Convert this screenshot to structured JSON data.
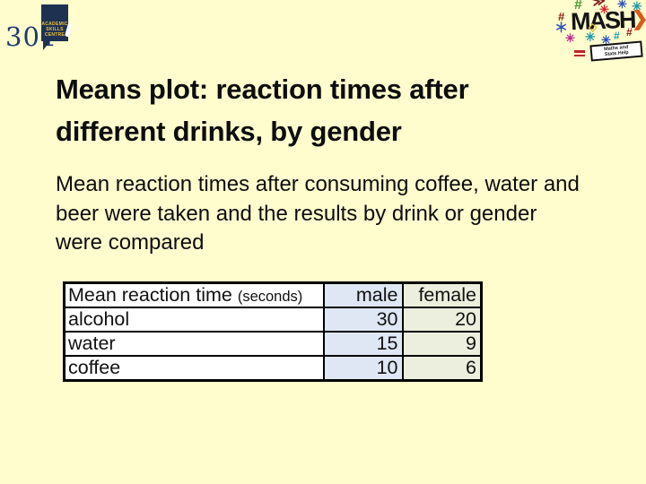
{
  "colors": {
    "background": "#FFFCCD",
    "navy": "#1E3A6E",
    "logo_box": "#1E3151",
    "logo_text": "#EFC23C",
    "male_column": "#DEE7F3",
    "female_column": "#ECEFDD"
  },
  "header": {
    "slide_number": "301",
    "skills_logo_lines": [
      "ACADEMIC",
      "SKILLS",
      "CENTRE"
    ],
    "mash": {
      "word": "MASH",
      "tagline_lines": [
        "Maths and",
        "Stats Help"
      ],
      "symbols": [
        {
          "name": "hash-icon",
          "glyph": "#",
          "color": "#3F9B2F"
        },
        {
          "name": "chevron-arrow-icon",
          "glyph": "≫",
          "color": "#7B1E1E"
        },
        {
          "name": "asterisk-icon",
          "glyph": "✳",
          "color": "#D1242A"
        },
        {
          "name": "asterisk-icon",
          "glyph": "✳",
          "color": "#2B50BE"
        },
        {
          "name": "asterisk-icon",
          "glyph": "✳",
          "color": "#1B9AA8"
        },
        {
          "name": "hash-icon",
          "glyph": "#",
          "color": "#8A1A1A"
        },
        {
          "name": "asterisk-icon",
          "glyph": "＊",
          "color": "#2B50BE"
        },
        {
          "name": "asterisk-icon",
          "glyph": "✳",
          "color": "#C2268B"
        },
        {
          "name": "asterisk-icon",
          "glyph": "✳",
          "color": "#1B9AA8"
        },
        {
          "name": "asterisk-icon",
          "glyph": "✳",
          "color": "#2B50BE"
        },
        {
          "name": "hash-icon",
          "glyph": "#",
          "color": "#1B9AA8"
        },
        {
          "name": "hash-icon",
          "glyph": "#",
          "color": "#8A1A1A"
        },
        {
          "name": "chevron-arrow-icon",
          "glyph": "❯",
          "color": "#D95B1C"
        },
        {
          "name": "diamond-icon",
          "glyph": "◇",
          "color": "#E3B71F"
        }
      ]
    }
  },
  "title": {
    "lines": [
      "Means plot: reaction times after",
      "different drinks, by gender"
    ]
  },
  "body": {
    "lines": [
      "Mean reaction times after consuming coffee, water and",
      "beer were taken and the results by drink or gender",
      "were compared"
    ]
  },
  "table": {
    "header": {
      "label": "Mean reaction time",
      "note": "(seconds)",
      "columns": [
        "male",
        "female"
      ]
    },
    "rows": [
      {
        "name": "alcohol",
        "male": 30,
        "female": 20
      },
      {
        "name": "water",
        "male": 15,
        "female": 9
      },
      {
        "name": "coffee",
        "male": 10,
        "female": 6
      }
    ]
  }
}
